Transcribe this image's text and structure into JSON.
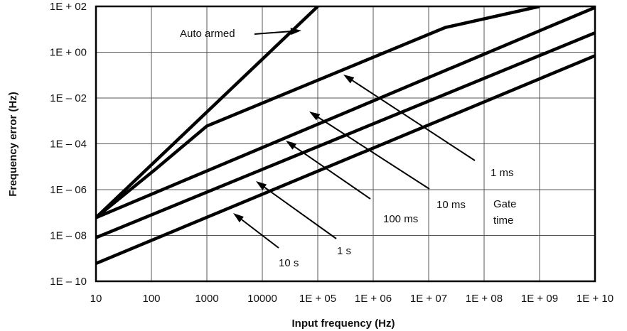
{
  "chart_data": {
    "type": "line",
    "title": "",
    "xlabel": "Input  frequency (Hz)",
    "ylabel": "Frequency error (Hz)",
    "x_scale": "log",
    "y_scale": "log",
    "xlim": [
      10,
      10000000000
    ],
    "ylim": [
      1e-10,
      100
    ],
    "grid": true,
    "x_tick_values": [
      10,
      100,
      1000,
      10000,
      100000,
      1000000,
      10000000,
      100000000,
      1000000000,
      10000000000
    ],
    "x_tick_labels": [
      "10",
      "100",
      "1000",
      "10000",
      "1E + 05",
      "1E + 06",
      "1E + 07",
      "1E + 08",
      "1E + 09",
      "1E + 10"
    ],
    "y_tick_values": [
      100,
      1,
      0.01,
      0.0001,
      1e-06,
      1e-08,
      1e-10
    ],
    "y_tick_labels": [
      "1E + 02",
      "1E + 00",
      "1E – 02",
      "1E – 04",
      "1E – 06",
      "1E – 08",
      "1E – 10"
    ],
    "series": [
      {
        "x": [
          10,
          100000
        ],
        "y": [
          6e-08,
          100
        ]
      },
      {
        "x": [
          10,
          120,
          1000,
          20000000,
          1000000000
        ],
        "y": [
          6e-08,
          8e-06,
          0.0006,
          12,
          100
        ]
      },
      {
        "x": [
          10,
          10000000000
        ],
        "y": [
          6e-08,
          90
        ]
      },
      {
        "x": [
          10,
          10000000000
        ],
        "y": [
          8e-09,
          7
        ]
      },
      {
        "x": [
          10,
          10000000000
        ],
        "y": [
          6e-10,
          0.7
        ]
      }
    ],
    "annotations": [
      {
        "text": "Auto armed",
        "arrow_to": [
          200000,
          20
        ]
      },
      {
        "text": "1 ms",
        "arrow_to": [
          300000,
          1
        ]
      },
      {
        "text": "10 ms",
        "arrow_to": [
          30000,
          0.01
        ]
      },
      {
        "text": "100 ms",
        "arrow_to": [
          3000,
          0.0002
        ]
      },
      {
        "text": "1 s",
        "arrow_to": [
          500,
          7e-06
        ]
      },
      {
        "text": "10 s",
        "arrow_to": [
          100,
          7e-07
        ]
      },
      {
        "text": "Gate",
        "arrow_to": null
      },
      {
        "text": "time",
        "arrow_to": null
      }
    ]
  }
}
